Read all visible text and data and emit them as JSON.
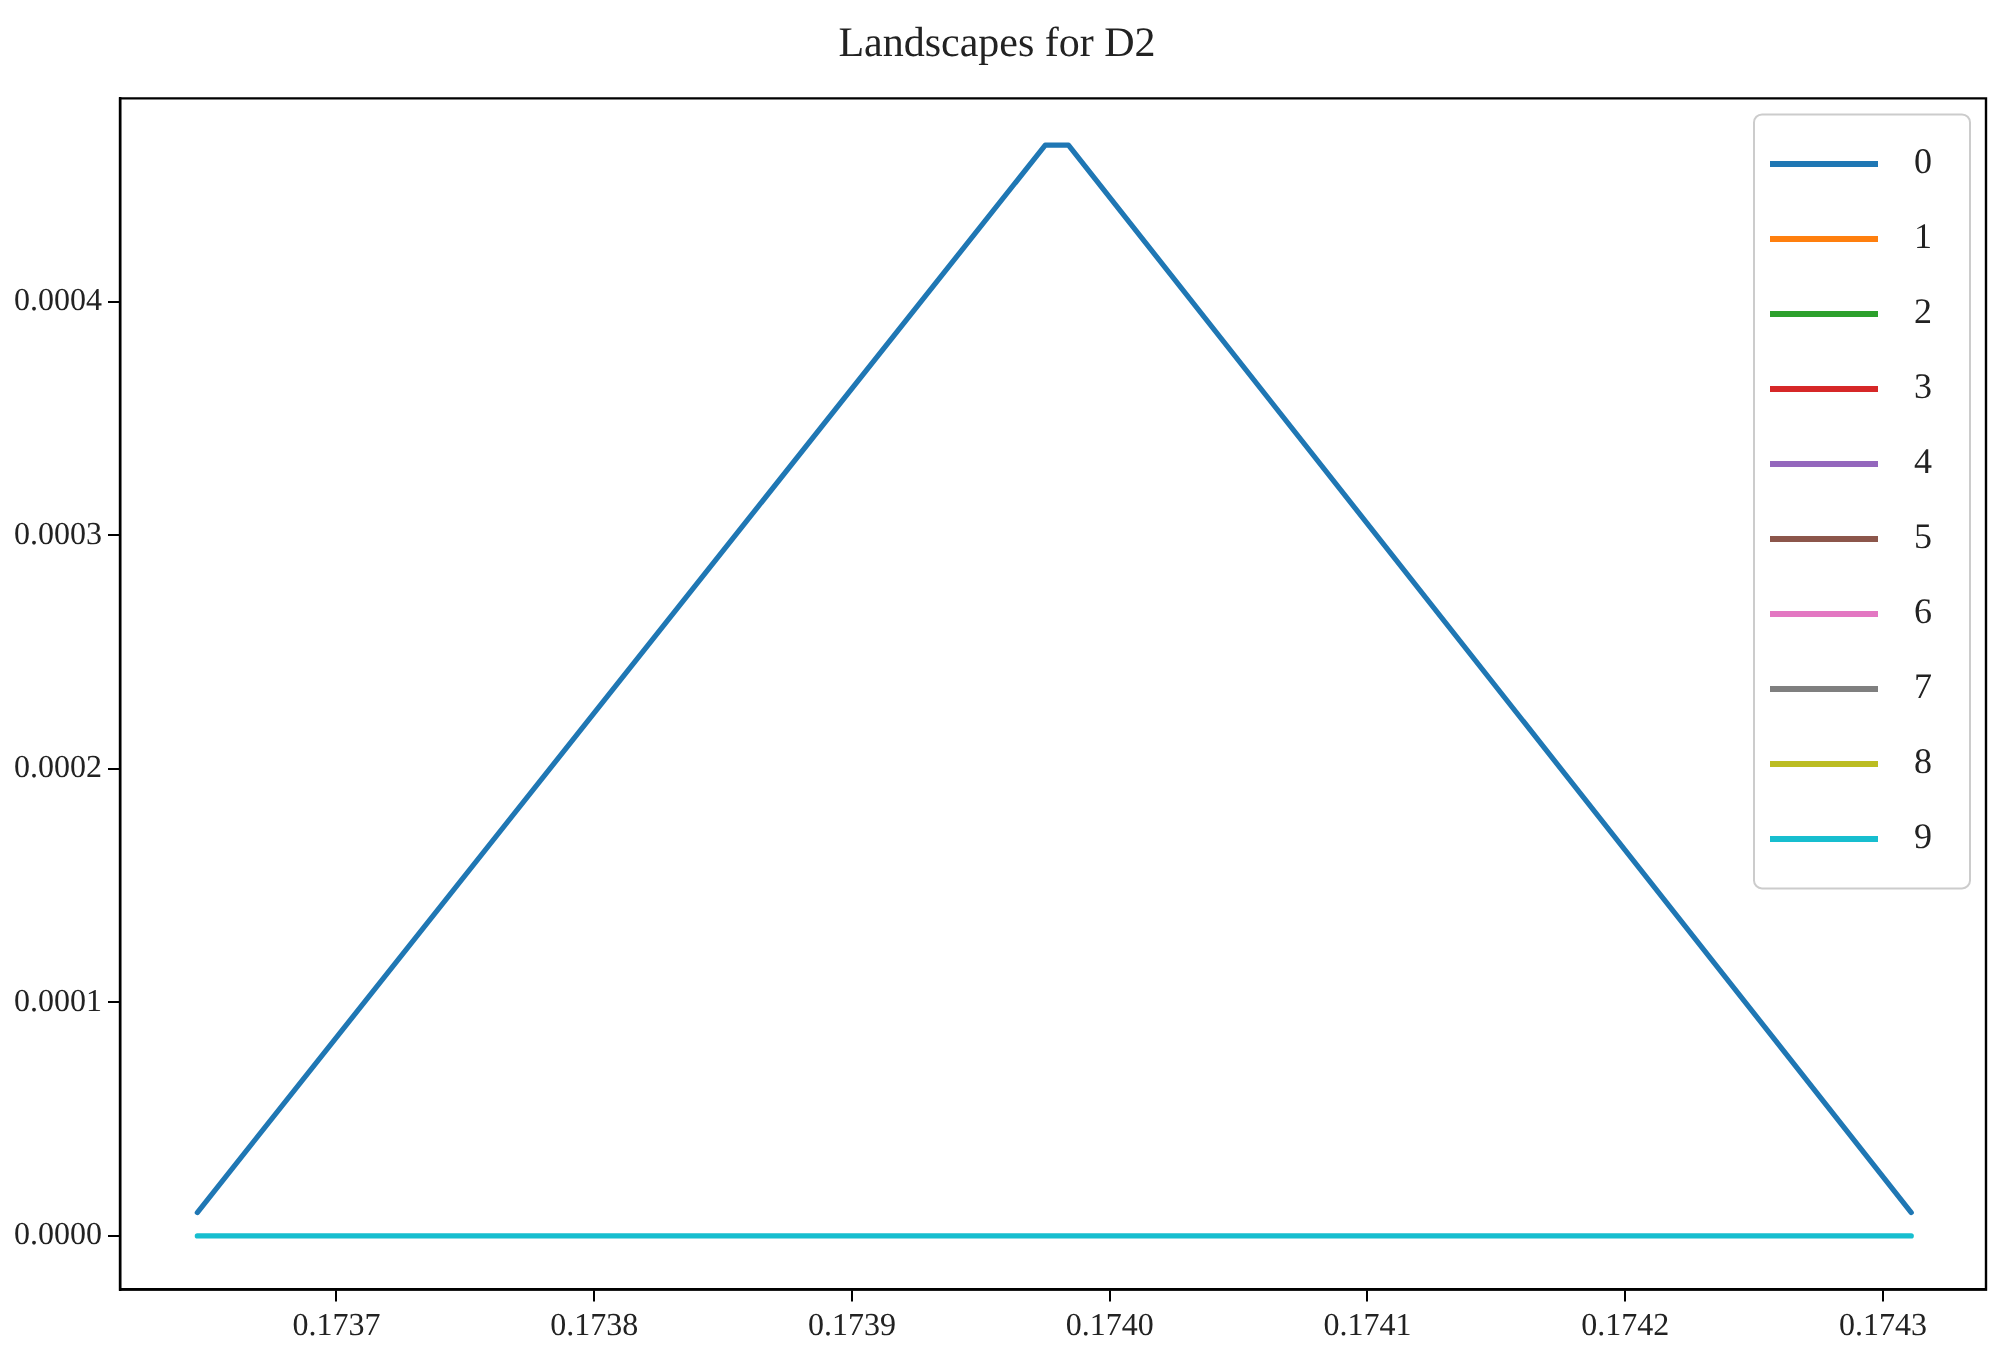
{
  "chart_data": {
    "type": "line",
    "title": "Landscapes for D2",
    "xlim": [
      0.173616,
      0.17434
    ],
    "ylim": [
      -2.3e-05,
      0.000487
    ],
    "xticks": [
      {
        "value": 0.1737,
        "label": "0.1737"
      },
      {
        "value": 0.1738,
        "label": "0.1738"
      },
      {
        "value": 0.1739,
        "label": "0.1739"
      },
      {
        "value": 0.174,
        "label": "0.1740"
      },
      {
        "value": 0.1741,
        "label": "0.1741"
      },
      {
        "value": 0.1742,
        "label": "0.1742"
      },
      {
        "value": 0.1743,
        "label": "0.1743"
      }
    ],
    "yticks": [
      {
        "value": 0,
        "label": "0.0000"
      },
      {
        "value": 0.0001,
        "label": "0.0001"
      },
      {
        "value": 0.0002,
        "label": "0.0002"
      },
      {
        "value": 0.0003,
        "label": "0.0003"
      },
      {
        "value": 0.0004,
        "label": "0.0004"
      }
    ],
    "grid": false,
    "legend": "top right",
    "marker": "none",
    "line_style": "solid",
    "series": [
      {
        "name": "0",
        "color": "#1f77b4",
        "x": [
          0.173646,
          0.173975,
          0.173984,
          0.174311
        ],
        "values": [
          1e-05,
          0.000467,
          0.000467,
          1e-05
        ]
      },
      {
        "name": "1",
        "color": "#ff7f0e"
      },
      {
        "name": "2",
        "color": "#2ca02c"
      },
      {
        "name": "3",
        "color": "#d62728"
      },
      {
        "name": "4",
        "color": "#9467bd"
      },
      {
        "name": "5",
        "color": "#8c564b"
      },
      {
        "name": "6",
        "color": "#e377c2"
      },
      {
        "name": "7",
        "color": "#7f7f7f"
      },
      {
        "name": "8",
        "color": "#bcbd22"
      },
      {
        "name": "9",
        "color": "#17becf",
        "x": [
          0.173646,
          0.174311
        ],
        "values": [
          0,
          0
        ]
      }
    ]
  }
}
